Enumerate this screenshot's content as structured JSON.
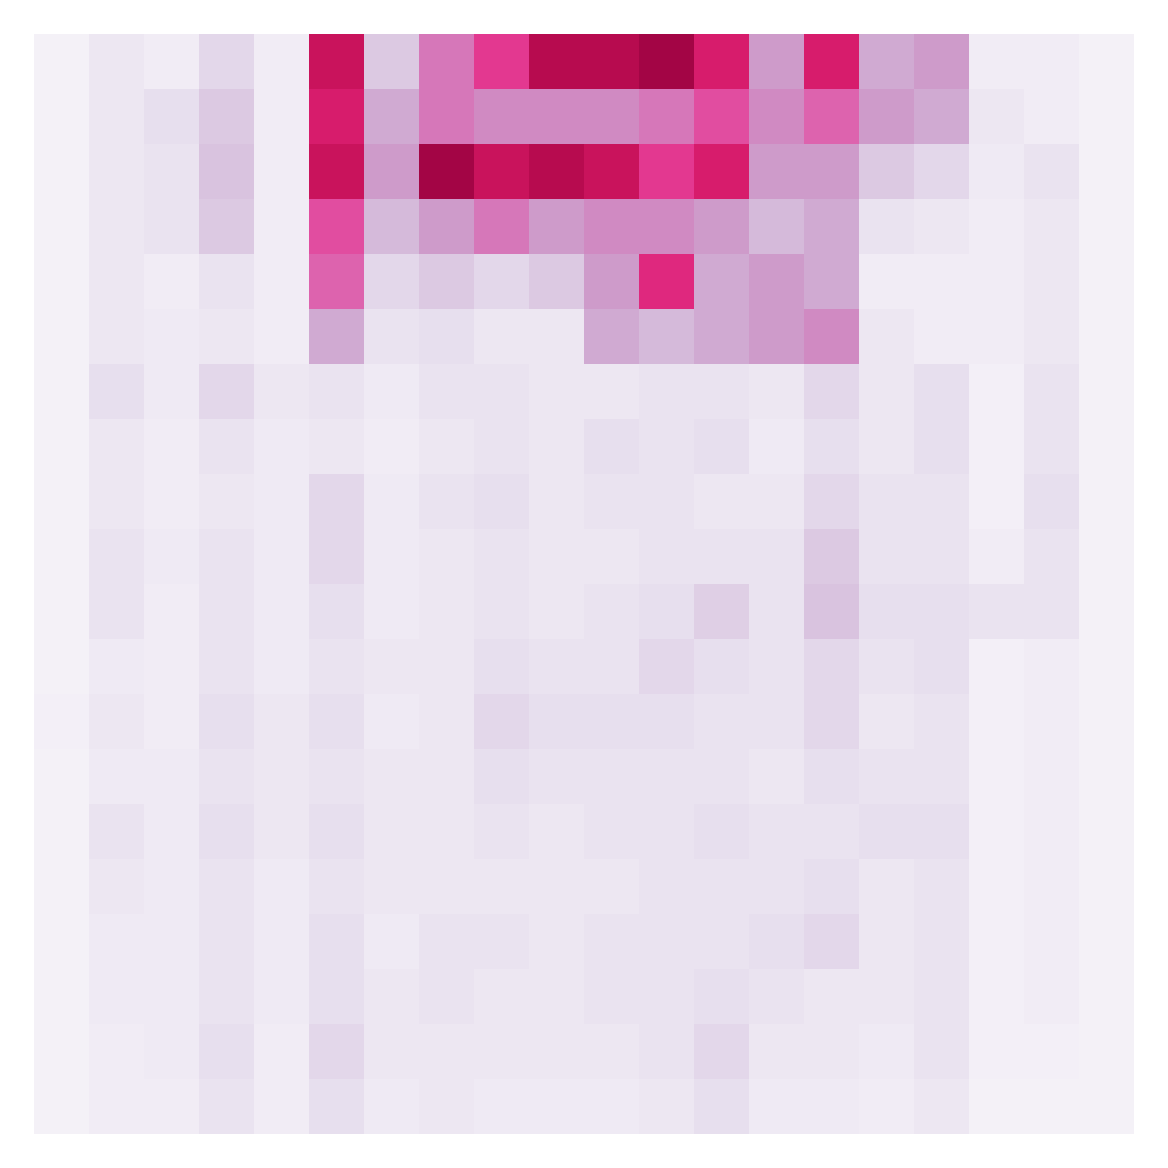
{
  "chart_data": {
    "type": "heatmap",
    "color": "PuRd",
    "tick_labels": false,
    "zlim": [
      0,
      1
    ],
    "values": [
      [
        0.02,
        0.08,
        0.05,
        0.15,
        0.05,
        0.75,
        0.2,
        0.45,
        0.6,
        0.8,
        0.8,
        0.85,
        0.7,
        0.35,
        0.7,
        0.3,
        0.35,
        0.05,
        0.05,
        0.02
      ],
      [
        0.02,
        0.08,
        0.12,
        0.2,
        0.05,
        0.7,
        0.3,
        0.45,
        0.4,
        0.4,
        0.4,
        0.45,
        0.55,
        0.4,
        0.5,
        0.35,
        0.3,
        0.08,
        0.05,
        0.02
      ],
      [
        0.02,
        0.08,
        0.1,
        0.22,
        0.05,
        0.75,
        0.35,
        0.85,
        0.75,
        0.8,
        0.75,
        0.6,
        0.7,
        0.35,
        0.35,
        0.2,
        0.15,
        0.06,
        0.1,
        0.02
      ],
      [
        0.02,
        0.08,
        0.1,
        0.2,
        0.05,
        0.55,
        0.25,
        0.35,
        0.45,
        0.35,
        0.4,
        0.4,
        0.35,
        0.25,
        0.3,
        0.1,
        0.08,
        0.05,
        0.08,
        0.02
      ],
      [
        0.02,
        0.08,
        0.05,
        0.1,
        0.05,
        0.5,
        0.15,
        0.2,
        0.15,
        0.2,
        0.35,
        0.65,
        0.3,
        0.35,
        0.3,
        0.05,
        0.05,
        0.05,
        0.08,
        0.02
      ],
      [
        0.02,
        0.08,
        0.06,
        0.08,
        0.05,
        0.3,
        0.1,
        0.12,
        0.08,
        0.08,
        0.3,
        0.25,
        0.3,
        0.35,
        0.4,
        0.08,
        0.05,
        0.05,
        0.08,
        0.02
      ],
      [
        0.02,
        0.12,
        0.06,
        0.15,
        0.08,
        0.1,
        0.06,
        0.1,
        0.1,
        0.08,
        0.08,
        0.1,
        0.1,
        0.08,
        0.15,
        0.08,
        0.12,
        0.03,
        0.1,
        0.02
      ],
      [
        0.02,
        0.08,
        0.05,
        0.1,
        0.06,
        0.08,
        0.05,
        0.08,
        0.1,
        0.08,
        0.12,
        0.1,
        0.12,
        0.06,
        0.12,
        0.08,
        0.12,
        0.03,
        0.1,
        0.02
      ],
      [
        0.02,
        0.08,
        0.05,
        0.08,
        0.06,
        0.15,
        0.06,
        0.1,
        0.12,
        0.08,
        0.1,
        0.1,
        0.08,
        0.08,
        0.15,
        0.1,
        0.1,
        0.03,
        0.12,
        0.02
      ],
      [
        0.02,
        0.1,
        0.06,
        0.1,
        0.06,
        0.15,
        0.06,
        0.08,
        0.1,
        0.08,
        0.08,
        0.1,
        0.1,
        0.1,
        0.2,
        0.1,
        0.1,
        0.05,
        0.1,
        0.02
      ],
      [
        0.02,
        0.1,
        0.05,
        0.1,
        0.06,
        0.12,
        0.06,
        0.08,
        0.1,
        0.08,
        0.1,
        0.12,
        0.18,
        0.1,
        0.22,
        0.12,
        0.12,
        0.1,
        0.1,
        0.02
      ],
      [
        0.02,
        0.06,
        0.05,
        0.1,
        0.06,
        0.1,
        0.08,
        0.08,
        0.12,
        0.1,
        0.1,
        0.15,
        0.12,
        0.1,
        0.15,
        0.1,
        0.12,
        0.03,
        0.05,
        0.02
      ],
      [
        0.03,
        0.08,
        0.05,
        0.12,
        0.08,
        0.12,
        0.06,
        0.08,
        0.15,
        0.12,
        0.12,
        0.12,
        0.1,
        0.1,
        0.15,
        0.08,
        0.1,
        0.03,
        0.05,
        0.02
      ],
      [
        0.02,
        0.06,
        0.06,
        0.1,
        0.08,
        0.1,
        0.08,
        0.08,
        0.12,
        0.1,
        0.1,
        0.1,
        0.1,
        0.08,
        0.12,
        0.1,
        0.1,
        0.03,
        0.05,
        0.02
      ],
      [
        0.02,
        0.1,
        0.06,
        0.12,
        0.08,
        0.12,
        0.08,
        0.08,
        0.1,
        0.08,
        0.1,
        0.1,
        0.12,
        0.1,
        0.1,
        0.12,
        0.12,
        0.03,
        0.05,
        0.02
      ],
      [
        0.02,
        0.08,
        0.06,
        0.1,
        0.06,
        0.1,
        0.08,
        0.08,
        0.08,
        0.08,
        0.08,
        0.1,
        0.1,
        0.1,
        0.12,
        0.08,
        0.1,
        0.03,
        0.05,
        0.02
      ],
      [
        0.02,
        0.06,
        0.06,
        0.1,
        0.06,
        0.12,
        0.06,
        0.1,
        0.1,
        0.08,
        0.1,
        0.1,
        0.1,
        0.12,
        0.15,
        0.08,
        0.1,
        0.03,
        0.05,
        0.02
      ],
      [
        0.02,
        0.06,
        0.06,
        0.1,
        0.06,
        0.12,
        0.08,
        0.1,
        0.08,
        0.08,
        0.1,
        0.1,
        0.12,
        0.1,
        0.08,
        0.08,
        0.1,
        0.03,
        0.05,
        0.02
      ],
      [
        0.02,
        0.05,
        0.06,
        0.12,
        0.05,
        0.15,
        0.08,
        0.08,
        0.08,
        0.08,
        0.08,
        0.1,
        0.15,
        0.08,
        0.08,
        0.06,
        0.1,
        0.03,
        0.03,
        0.02
      ],
      [
        0.02,
        0.05,
        0.05,
        0.1,
        0.05,
        0.12,
        0.06,
        0.08,
        0.06,
        0.06,
        0.06,
        0.08,
        0.12,
        0.06,
        0.06,
        0.05,
        0.08,
        0.02,
        0.02,
        0.02
      ]
    ]
  }
}
